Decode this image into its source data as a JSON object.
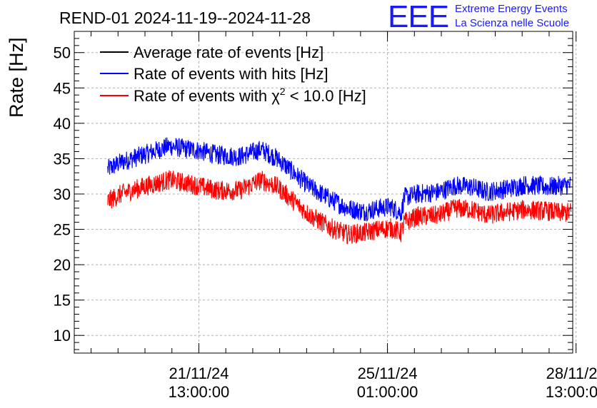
{
  "logo": {
    "mark": "EEE",
    "line1": "Extreme Energy Events",
    "line2": "La Scienza nelle Scuole"
  },
  "chart_data": {
    "type": "line",
    "title": "REND-01 2024-11-19--2024-11-28",
    "ylabel": "Rate [Hz]",
    "xlabel": "",
    "ylim": [
      7.5,
      53
    ],
    "xlim_days_since_2024_11_19": [
      0.23,
      9.48
    ],
    "yticks": [
      10,
      15,
      20,
      25,
      30,
      35,
      40,
      45,
      50
    ],
    "xticks": [
      {
        "day": 2.542,
        "line1": "21/11/24",
        "line2": "13:00:00"
      },
      {
        "day": 6.042,
        "line1": "25/11/24",
        "line2": "01:00:00"
      },
      {
        "day": 9.542,
        "line1": "28/11/24",
        "line2": "13:00:00"
      }
    ],
    "grid": true,
    "legend": {
      "placement": "top-left",
      "entries": [
        {
          "label": "Average rate of events [Hz]",
          "color": "#000000"
        },
        {
          "label": "Rate of events with hits [Hz]",
          "color": "#0000ff"
        },
        {
          "label_prefix": "Rate of events with ",
          "label_chi": "χ",
          "label_sup": "2",
          "label_suffix": " < 10.0 [Hz]",
          "color": "#ff0000"
        }
      ]
    },
    "series": [
      {
        "name": "Rate of events with hits [Hz]",
        "color": "#0000ff",
        "noise": 1.4,
        "days": [
          0.85,
          1.1,
          1.5,
          2.0,
          2.2,
          2.5,
          2.9,
          3.3,
          3.7,
          4.0,
          4.3,
          4.6,
          5.0,
          5.3,
          5.6,
          5.9,
          6.1,
          6.3,
          6.35,
          6.6,
          7.0,
          7.3,
          7.6,
          7.9,
          8.3,
          8.6,
          9.0,
          9.3,
          9.45
        ],
        "values": [
          33.5,
          34.5,
          35.5,
          36.8,
          36.5,
          36.2,
          35.5,
          35.3,
          36.3,
          35.0,
          33.0,
          31.0,
          29.2,
          28.0,
          27.5,
          28.0,
          28.2,
          27.3,
          29.5,
          30.0,
          30.3,
          31.2,
          31.0,
          30.3,
          30.8,
          31.3,
          31.0,
          31.2,
          31.3
        ]
      },
      {
        "name": "Rate of events with χ2 < 10.0 [Hz]",
        "color": "#ff0000",
        "noise": 1.4,
        "days": [
          0.85,
          1.1,
          1.5,
          2.0,
          2.2,
          2.5,
          2.9,
          3.3,
          3.7,
          4.0,
          4.3,
          4.6,
          5.0,
          5.3,
          5.6,
          5.9,
          6.1,
          6.3,
          6.35,
          6.6,
          7.0,
          7.3,
          7.6,
          7.9,
          8.3,
          8.6,
          9.0,
          9.3,
          9.45
        ],
        "values": [
          29.0,
          30.0,
          31.0,
          32.0,
          31.7,
          31.2,
          30.5,
          30.5,
          32.0,
          31.0,
          29.0,
          27.0,
          25.2,
          24.3,
          24.5,
          25.0,
          25.2,
          24.5,
          26.0,
          26.8,
          27.0,
          28.0,
          27.8,
          27.0,
          27.5,
          27.8,
          27.6,
          27.3,
          27.5
        ]
      }
    ]
  }
}
